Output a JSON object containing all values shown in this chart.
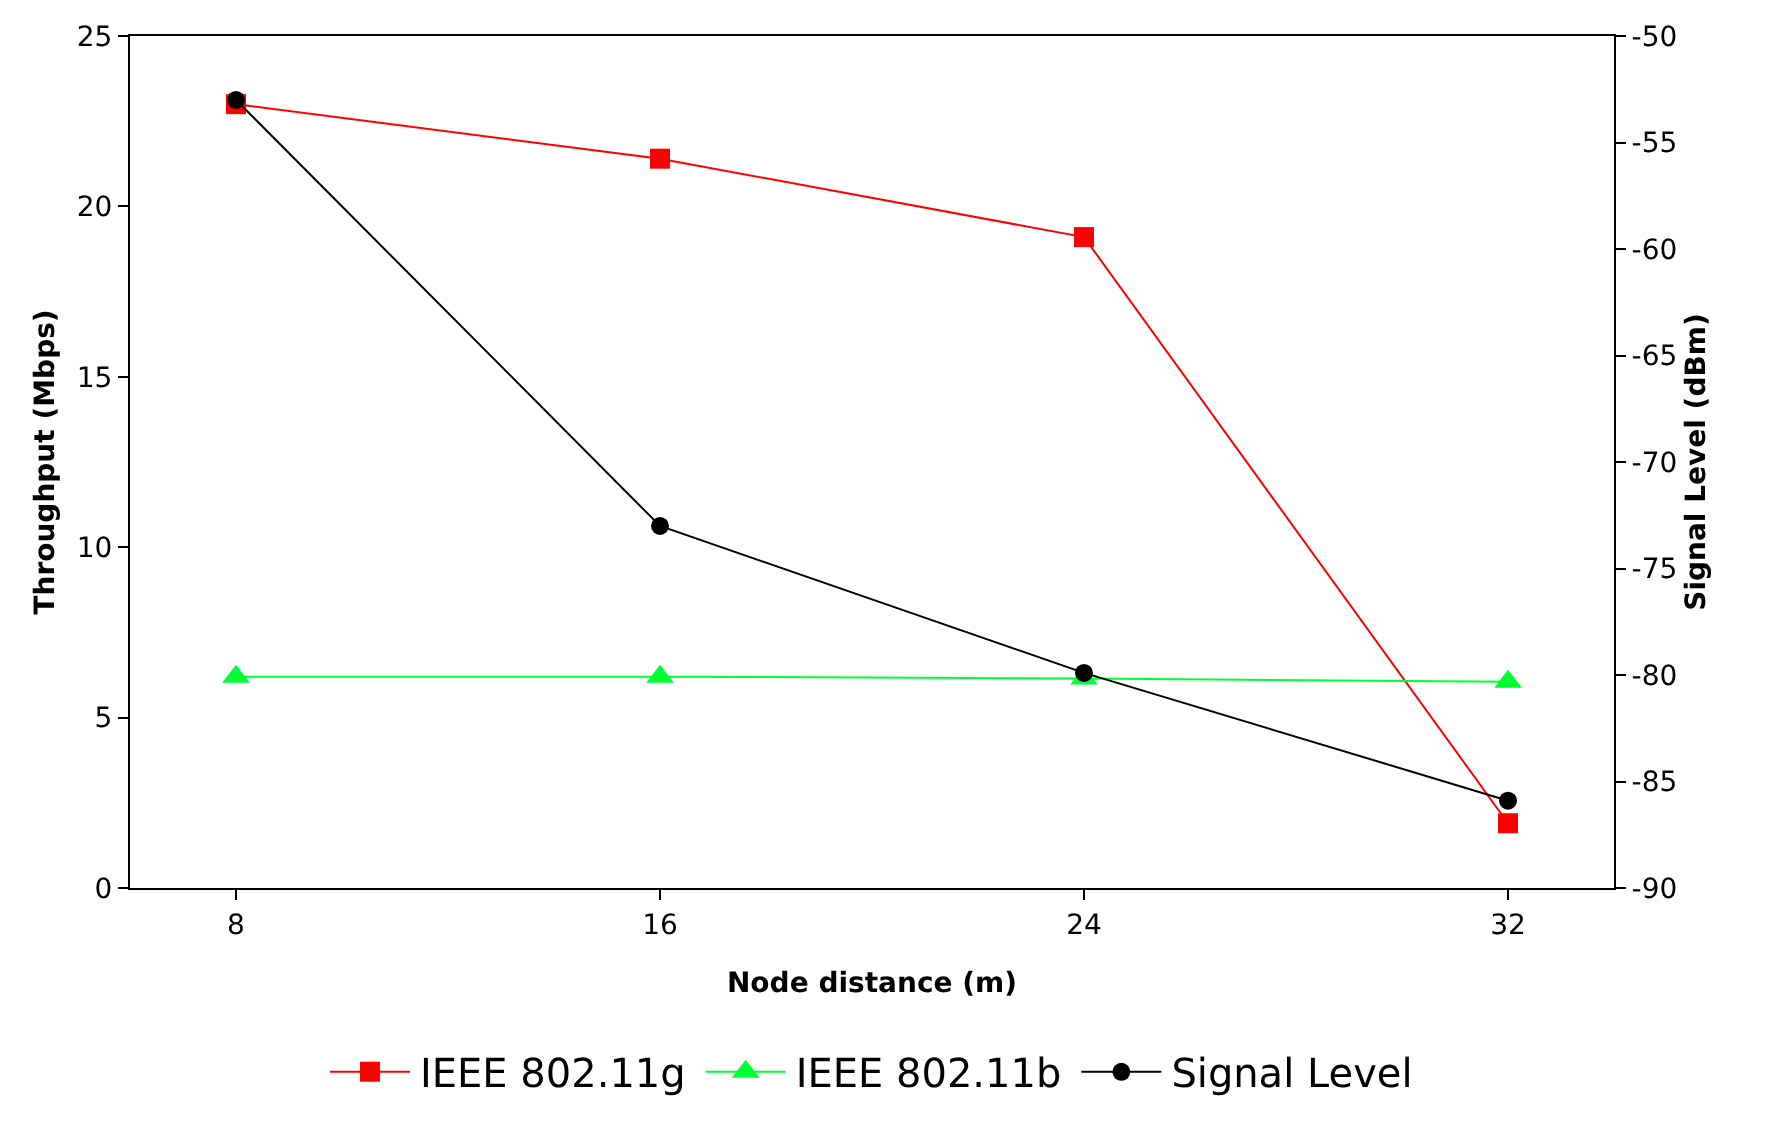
{
  "chart_data": {
    "type": "line",
    "xlabel": "Node distance (m)",
    "ylabel": "Throughput (Mbps)",
    "y2label": "Signal Level (dBm)",
    "x": [
      8,
      16,
      24,
      32
    ],
    "xlim": [
      6,
      34
    ],
    "xticks": [
      8,
      16,
      24,
      32
    ],
    "ylim": [
      0,
      25
    ],
    "yticks": [
      0,
      5,
      10,
      15,
      20,
      25
    ],
    "y2lim": [
      -90,
      -50
    ],
    "y2ticks": [
      -90,
      -85,
      -80,
      -75,
      -70,
      -65,
      -60,
      -55,
      -50
    ],
    "grid": false,
    "legend": "bottom",
    "line_style": "solid",
    "series": [
      {
        "name": "IEEE 802.11g",
        "color": "#ff0000",
        "marker": "square",
        "values": [
          23.0,
          21.4,
          19.1,
          1.9
        ]
      },
      {
        "name": "IEEE 802.11b",
        "color": "#00ff33",
        "marker": "triangle",
        "values": [
          6.2,
          6.2,
          6.15,
          6.05
        ]
      },
      {
        "name": "Signal Level",
        "color": "#000000",
        "marker": "circle",
        "axis": "y2",
        "values": [
          -53.0,
          -73.0,
          -79.9,
          -85.9
        ]
      }
    ]
  }
}
